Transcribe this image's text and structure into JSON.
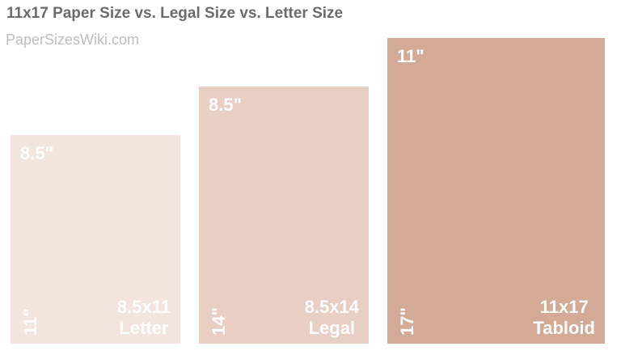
{
  "header": {
    "title": "11x17 Paper Size vs. Legal Size vs. Letter Size",
    "watermark": "PaperSizesWiki.com"
  },
  "colors": {
    "letter": "#f3e5dd",
    "legal": "#e9cfc3",
    "tabloid": "#d2aa95",
    "title": "#6b6b6b",
    "watermark": "#bdbdbd"
  },
  "sheets": [
    {
      "width_label": "8.5\"",
      "height_label": "11\"",
      "size": "8.5x11",
      "name": "Letter"
    },
    {
      "width_label": "8.5\"",
      "height_label": "14\"",
      "size": "8.5x14",
      "name": "Legal"
    },
    {
      "width_label": "11\"",
      "height_label": "17\"",
      "size": "11x17",
      "name": "Tabloid"
    }
  ]
}
